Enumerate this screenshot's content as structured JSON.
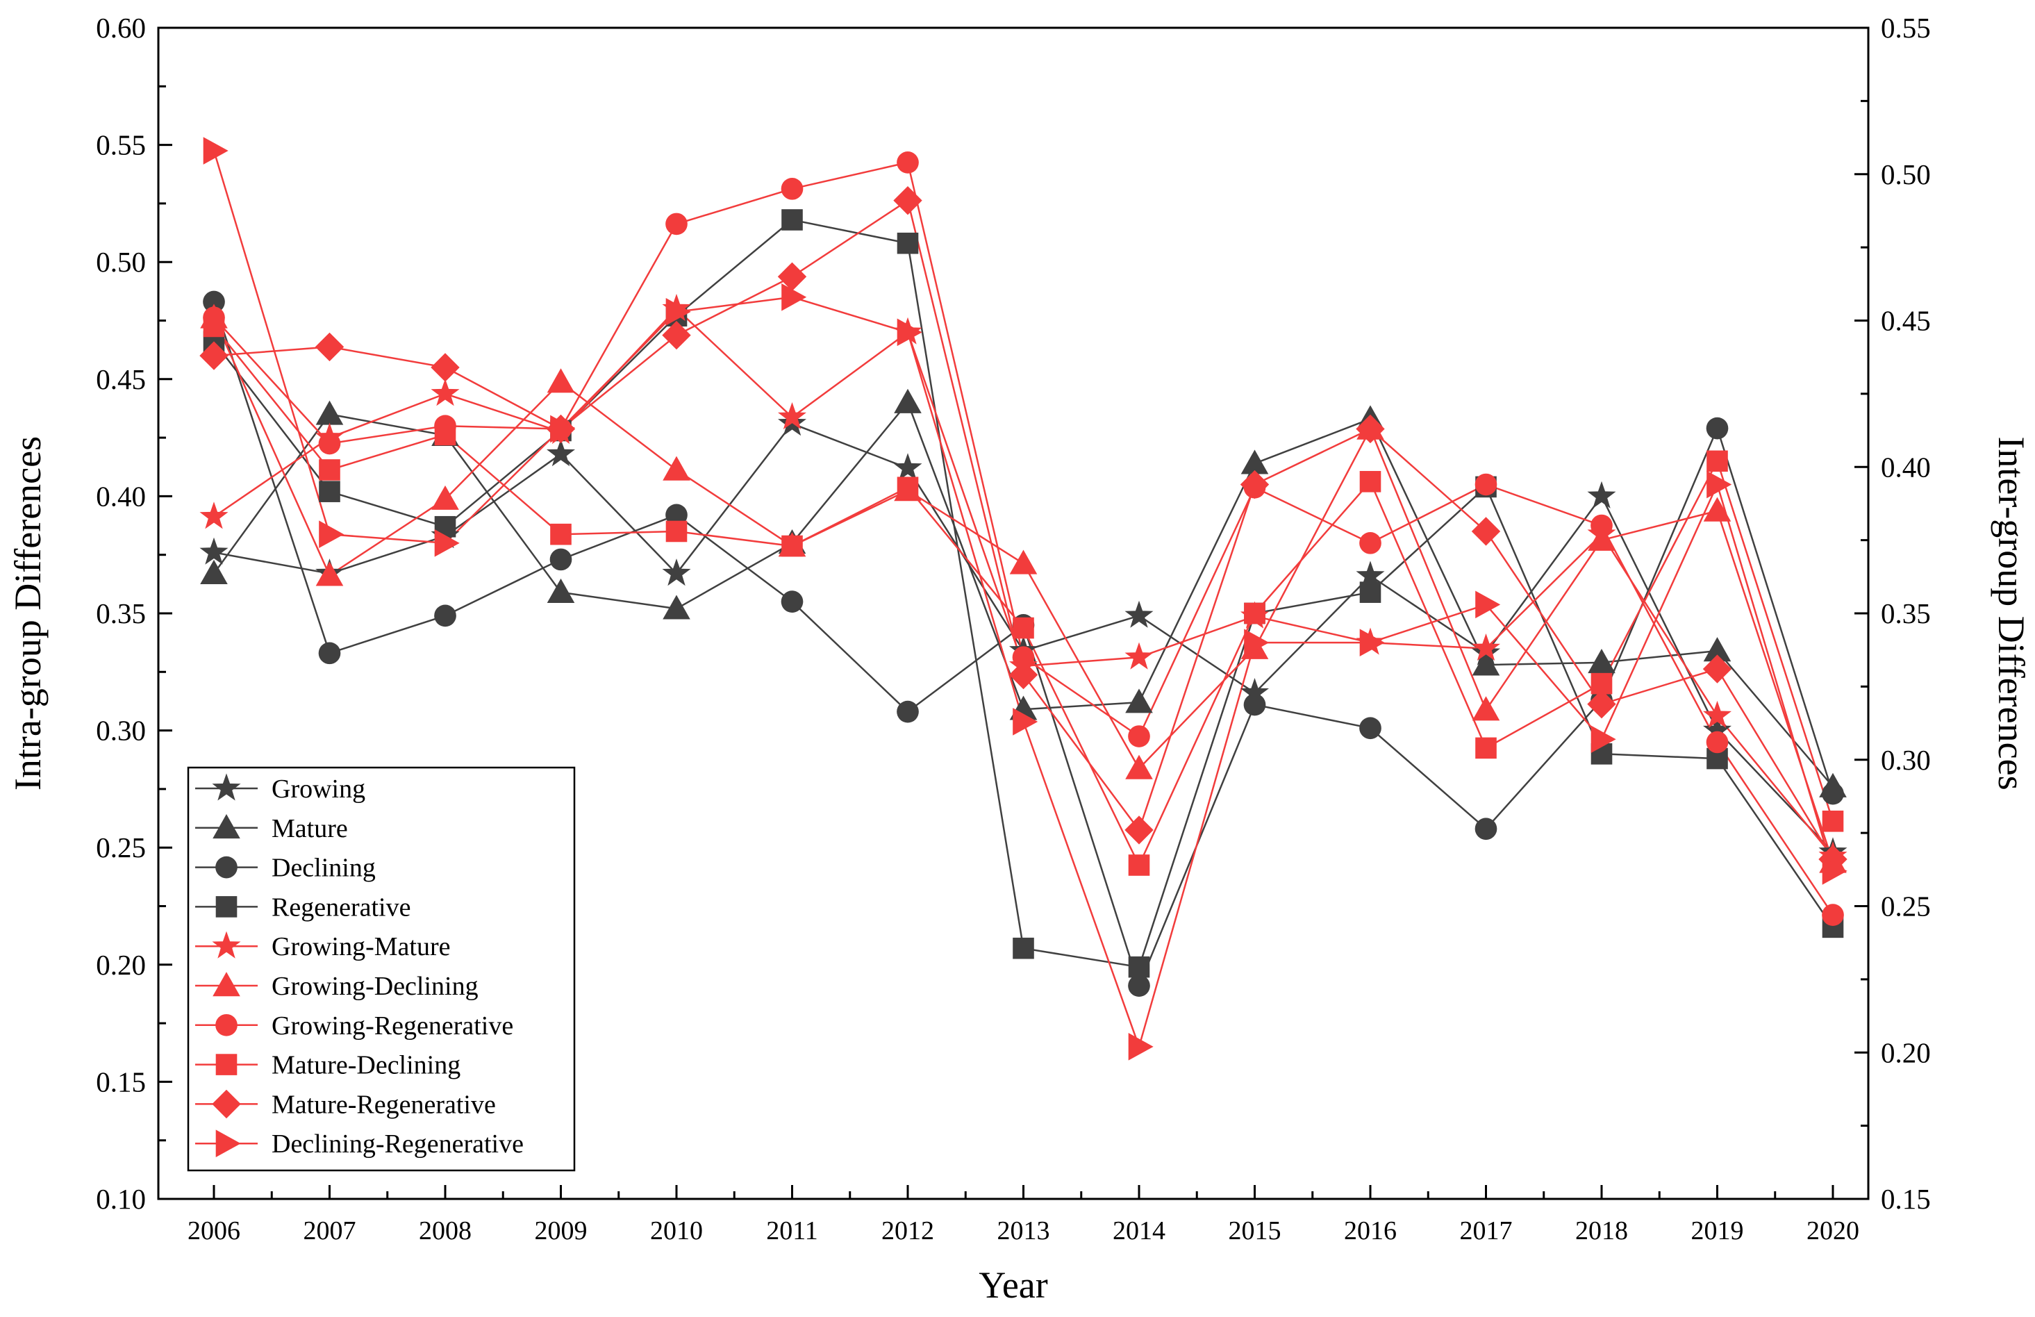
{
  "chart_data": {
    "type": "line",
    "xlabel": "Year",
    "ylabel_left": "Intra-group Differences",
    "ylabel_right": "Inter-group Differences",
    "ylim_left": [
      0.1,
      0.6
    ],
    "ylim_right": [
      0.15,
      0.55
    ],
    "yticks_left": [
      "0.10",
      "0.15",
      "0.20",
      "0.25",
      "0.30",
      "0.35",
      "0.40",
      "0.45",
      "0.50",
      "0.55",
      "0.60"
    ],
    "yticks_right": [
      "0.15",
      "0.20",
      "0.25",
      "0.30",
      "0.35",
      "0.40",
      "0.45",
      "0.50",
      "0.55"
    ],
    "categories": [
      "2006",
      "2007",
      "2008",
      "2009",
      "2010",
      "2011",
      "2012",
      "2013",
      "2014",
      "2015",
      "2016",
      "2017",
      "2018",
      "2019",
      "2020"
    ],
    "grid": false,
    "legend_position": "bottom-left",
    "series": [
      {
        "name": "Growing",
        "axis": "left",
        "color": "#404040",
        "marker": "star",
        "values": [
          0.376,
          0.367,
          0.383,
          0.418,
          0.367,
          0.431,
          0.412,
          0.334,
          0.349,
          0.316,
          0.366,
          0.333,
          0.4,
          0.3,
          0.248
        ]
      },
      {
        "name": "Mature",
        "axis": "left",
        "color": "#404040",
        "marker": "triangle",
        "values": [
          0.367,
          0.435,
          0.426,
          0.359,
          0.352,
          0.38,
          0.44,
          0.309,
          0.312,
          0.414,
          0.433,
          0.328,
          0.329,
          0.334,
          0.276
        ]
      },
      {
        "name": "Declining",
        "axis": "left",
        "color": "#404040",
        "marker": "circle",
        "values": [
          0.483,
          0.333,
          0.349,
          0.373,
          0.392,
          0.355,
          0.308,
          0.345,
          0.191,
          0.311,
          0.301,
          0.258,
          0.313,
          0.429,
          0.273
        ]
      },
      {
        "name": "Regenerative",
        "axis": "left",
        "color": "#404040",
        "marker": "square",
        "values": [
          0.466,
          0.402,
          0.387,
          0.428,
          0.477,
          0.518,
          0.508,
          0.207,
          0.199,
          0.35,
          0.359,
          0.404,
          0.29,
          0.288,
          0.216
        ]
      },
      {
        "name": "Growing-Mature",
        "axis": "right",
        "color": "#f23c3c",
        "marker": "star",
        "values": [
          0.383,
          0.41,
          0.425,
          0.412,
          0.454,
          0.417,
          0.446,
          0.332,
          0.335,
          0.349,
          0.34,
          0.338,
          0.377,
          0.315,
          0.267
        ]
      },
      {
        "name": "Growing-Declining",
        "axis": "right",
        "color": "#f23c3c",
        "marker": "triangle",
        "values": [
          0.451,
          0.363,
          0.389,
          0.429,
          0.399,
          0.373,
          0.392,
          0.367,
          0.297,
          0.338,
          0.413,
          0.317,
          0.375,
          0.385,
          0.265
        ]
      },
      {
        "name": "Growing-Regenerative",
        "axis": "right",
        "color": "#f23c3c",
        "marker": "circle",
        "values": [
          0.451,
          0.408,
          0.414,
          0.413,
          0.483,
          0.495,
          0.504,
          0.335,
          0.308,
          0.393,
          0.374,
          0.394,
          0.38,
          0.306,
          0.247
        ]
      },
      {
        "name": "Mature-Declining",
        "axis": "right",
        "color": "#f23c3c",
        "marker": "square",
        "values": [
          0.448,
          0.399,
          0.411,
          0.377,
          0.378,
          0.373,
          0.393,
          0.345,
          0.264,
          0.35,
          0.395,
          0.304,
          0.326,
          0.402,
          0.279
        ]
      },
      {
        "name": "Mature-Regenerative",
        "axis": "right",
        "color": "#f23c3c",
        "marker": "diamond",
        "values": [
          0.438,
          0.441,
          0.434,
          0.413,
          0.445,
          0.465,
          0.491,
          0.329,
          0.276,
          0.394,
          0.413,
          0.378,
          0.319,
          0.331,
          0.266
        ]
      },
      {
        "name": "Declining-Regenerative",
        "axis": "right",
        "color": "#f23c3c",
        "marker": "triangle-right",
        "values": [
          0.508,
          0.377,
          0.374,
          0.413,
          0.453,
          0.458,
          0.446,
          0.313,
          0.202,
          0.34,
          0.34,
          0.353,
          0.307,
          0.394,
          0.262
        ]
      }
    ]
  }
}
